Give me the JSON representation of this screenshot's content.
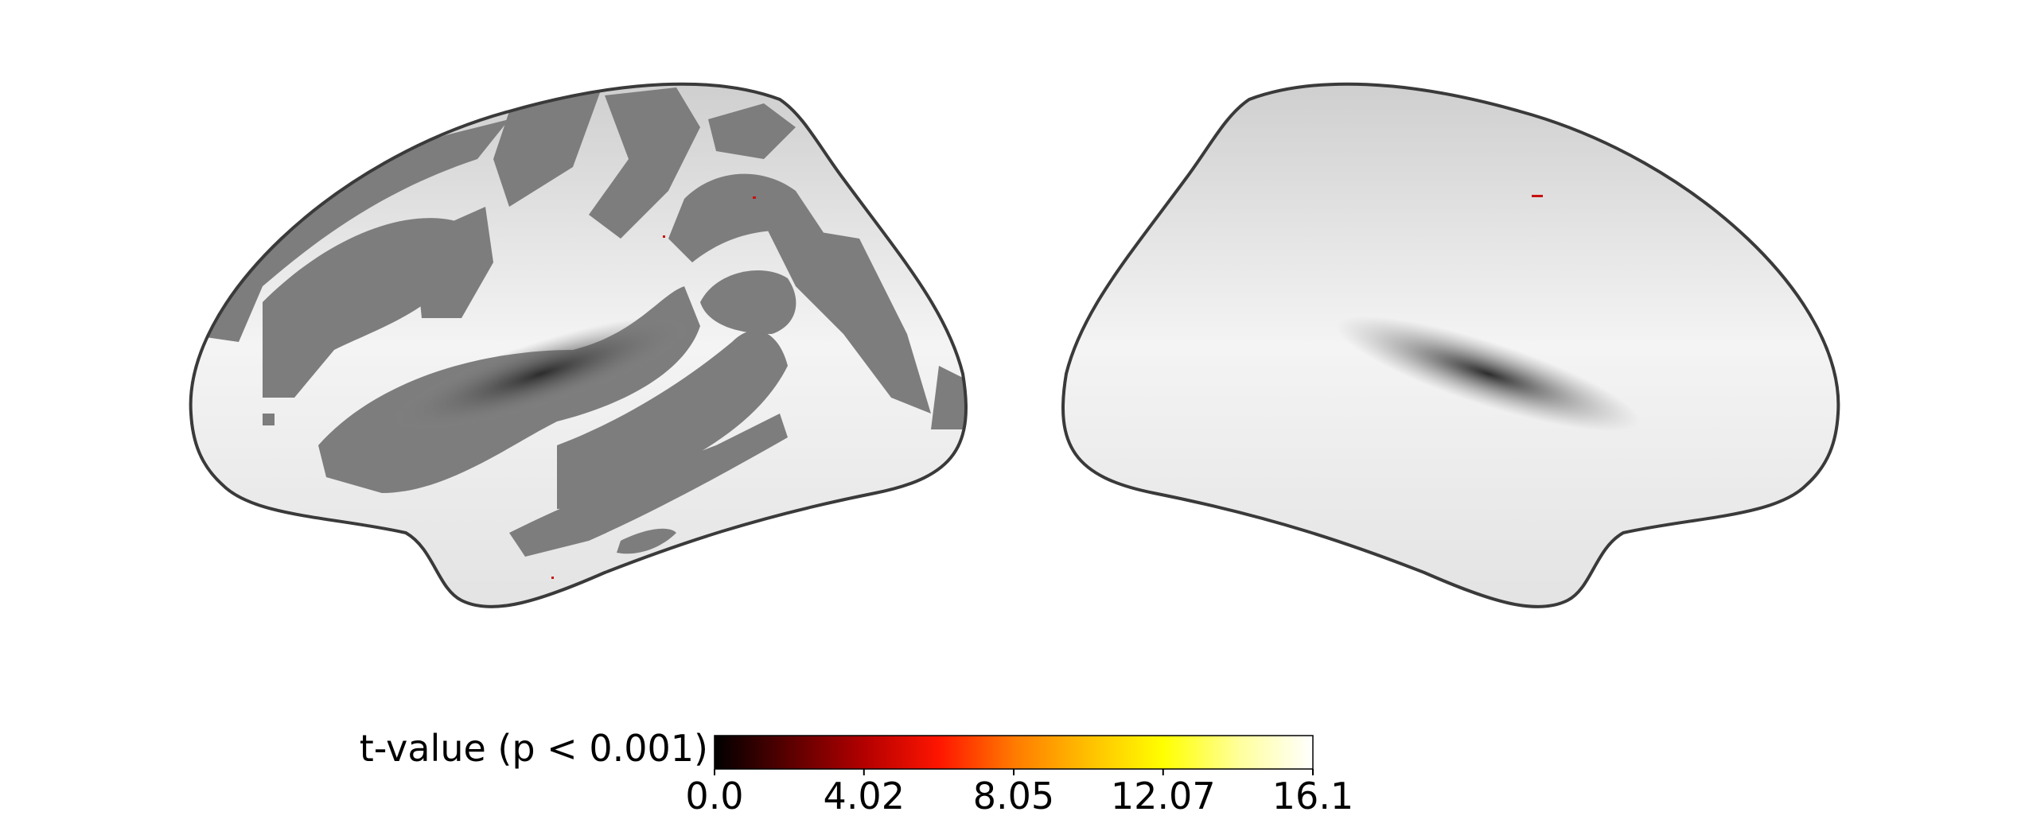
{
  "colorbar": {
    "label": "t-value (p < 0.001)",
    "colormap": [
      "#000000",
      "#5a0000",
      "#b30000",
      "#ff1500",
      "#ff7a00",
      "#ffc000",
      "#ffff00",
      "#ffff9a",
      "#ffffff"
    ],
    "ticks": [
      {
        "value": 0.0,
        "label": "0.0"
      },
      {
        "value": 4.02,
        "label": "4.02"
      },
      {
        "value": 8.05,
        "label": "8.05"
      },
      {
        "value": 12.07,
        "label": "12.07"
      },
      {
        "value": 16.1,
        "label": "16.1"
      }
    ],
    "range": [
      0.0,
      16.1
    ]
  },
  "colors": {
    "gyri": "#d9d9d9",
    "sulci": "#7d7d7d",
    "outline": "#3a3a3a",
    "activation": "#c81010"
  }
}
